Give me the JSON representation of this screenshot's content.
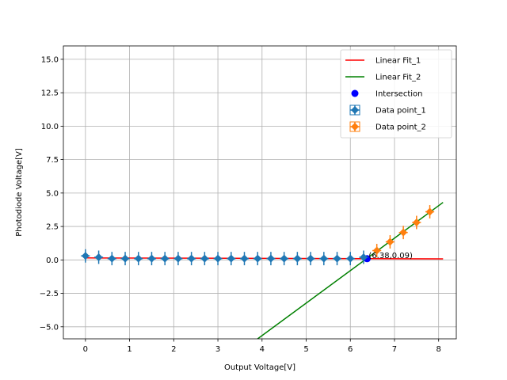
{
  "chart_data": {
    "type": "scatter",
    "xlabel": "Output Voltage[V]",
    "ylabel": "Photodiode Voltage[V]",
    "xlim": [
      -0.5,
      8.4
    ],
    "ylim": [
      -5.9,
      16.0
    ],
    "xticks": [
      0,
      1,
      2,
      3,
      4,
      5,
      6,
      7,
      8
    ],
    "xtick_labels": [
      "0",
      "1",
      "2",
      "3",
      "4",
      "5",
      "6",
      "7",
      "8"
    ],
    "yticks": [
      -5.0,
      -2.5,
      0.0,
      2.5,
      5.0,
      7.5,
      10.0,
      12.5,
      15.0
    ],
    "ytick_labels": [
      "−5.0",
      "−2.5",
      "0.0",
      "2.5",
      "5.0",
      "7.5",
      "10.0",
      "12.5",
      "15.0"
    ],
    "grid": true,
    "legend_position": "top-right",
    "series": [
      {
        "name": "Linear Fit_1",
        "kind": "line",
        "color": "#ff0000",
        "x": [
          0.0,
          8.1
        ],
        "y": [
          0.15,
          0.08
        ]
      },
      {
        "name": "Linear Fit_2",
        "kind": "line",
        "color": "#008000",
        "x": [
          3.9,
          8.1
        ],
        "y": [
          -5.9,
          4.3
        ]
      },
      {
        "name": "Intersection",
        "kind": "point",
        "color": "#0000ff",
        "x": [
          6.38
        ],
        "y": [
          0.09
        ]
      },
      {
        "name": "Data point_1",
        "kind": "errorbar",
        "color": "#1f77b4",
        "x": [
          0.0,
          0.3,
          0.6,
          0.9,
          1.2,
          1.5,
          1.8,
          2.1,
          2.4,
          2.7,
          3.0,
          3.3,
          3.6,
          3.9,
          4.2,
          4.5,
          4.8,
          5.1,
          5.4,
          5.7,
          6.0,
          6.3
        ],
        "y": [
          0.3,
          0.2,
          0.1,
          0.1,
          0.1,
          0.1,
          0.1,
          0.1,
          0.1,
          0.1,
          0.1,
          0.1,
          0.1,
          0.1,
          0.1,
          0.1,
          0.1,
          0.1,
          0.1,
          0.1,
          0.1,
          0.2
        ],
        "yerr": 0.5,
        "xerr": 0.1
      },
      {
        "name": "Data point_2",
        "kind": "errorbar",
        "color": "#ff7f0e",
        "x": [
          6.6,
          6.9,
          7.2,
          7.5,
          7.8
        ],
        "y": [
          0.7,
          1.35,
          2.05,
          2.8,
          3.6
        ],
        "yerr": 0.5,
        "xerr": 0.1
      }
    ],
    "annotations": [
      {
        "text": "(6.38,0.09)",
        "x": 6.38,
        "y": 0.09
      }
    ]
  }
}
